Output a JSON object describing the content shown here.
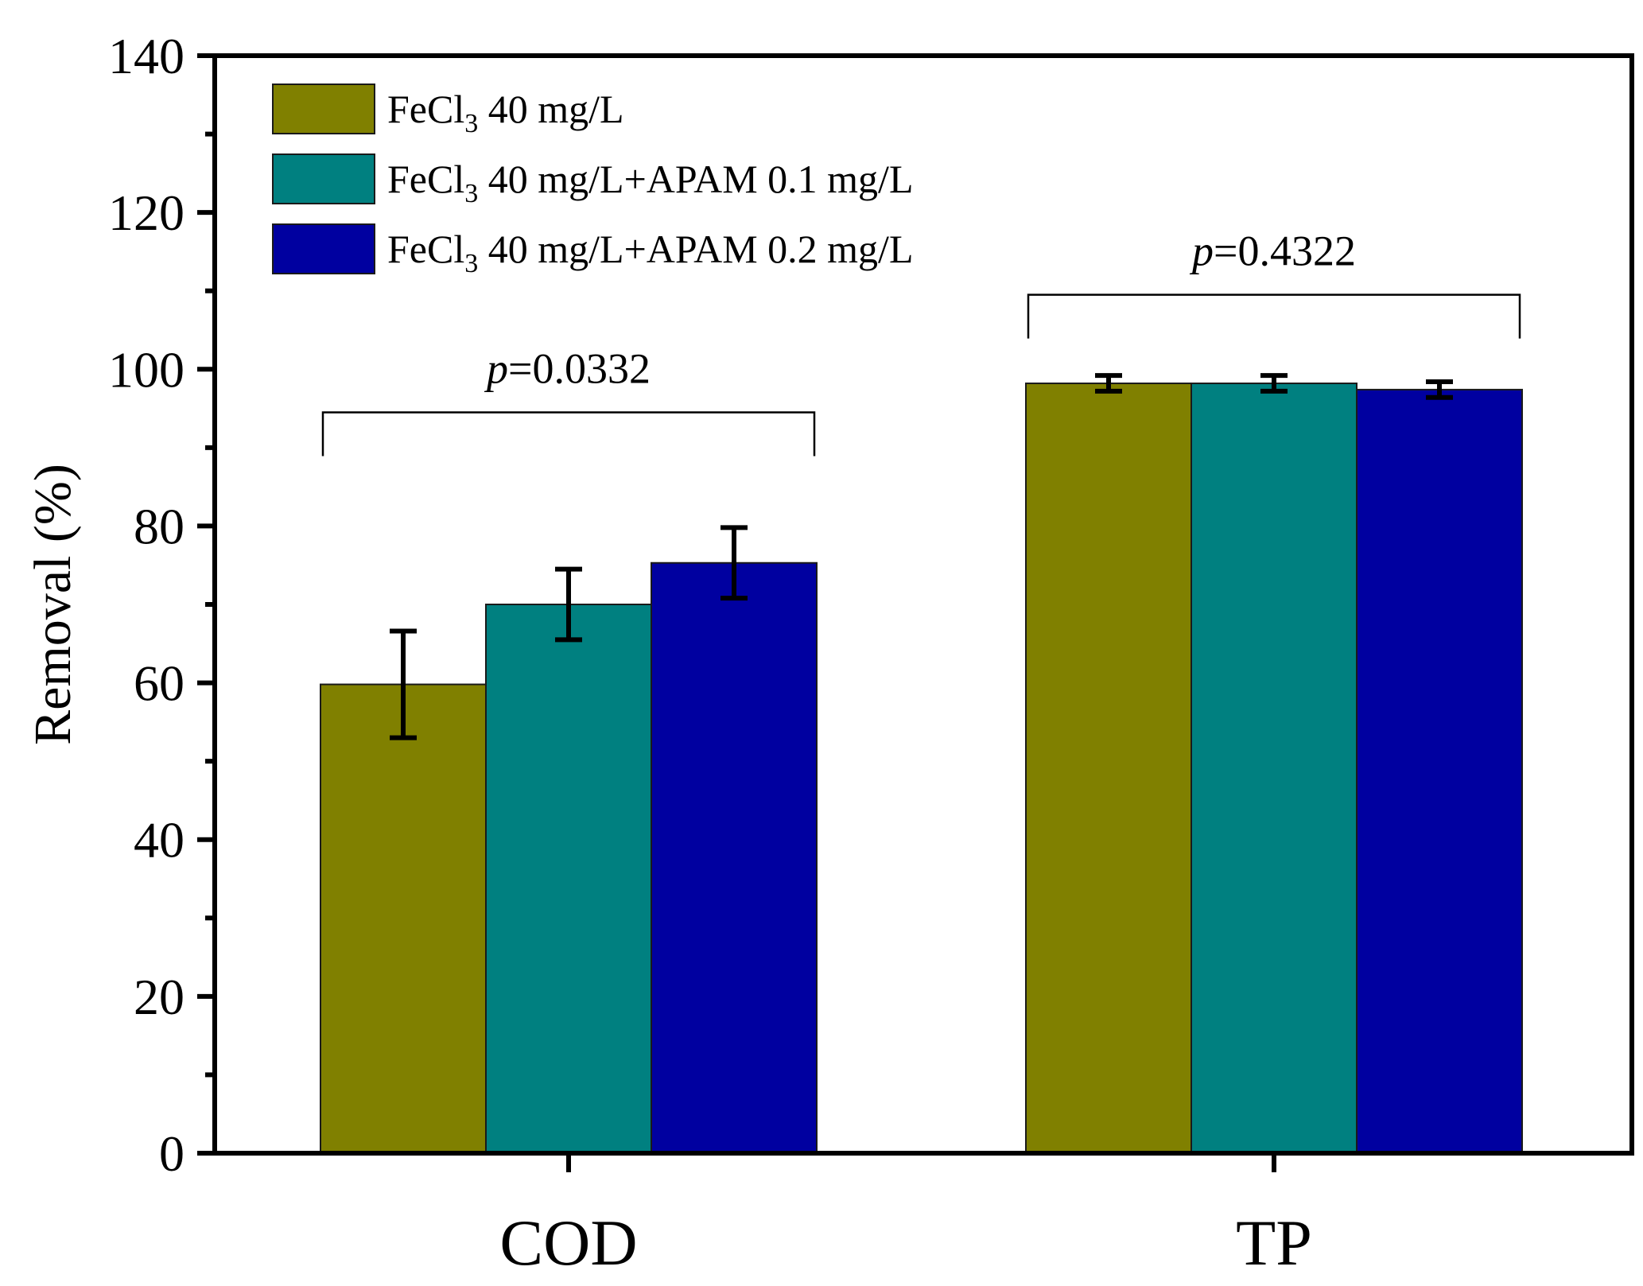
{
  "chart_data": {
    "type": "bar",
    "ylabel": "Removal (%)",
    "xlabel": "",
    "ylim": [
      0,
      140
    ],
    "yticks": [
      "0",
      "20",
      "40",
      "60",
      "80",
      "100",
      "120",
      "140"
    ],
    "categories": [
      "COD",
      "TP"
    ],
    "series": [
      {
        "name_main": "FeCl",
        "name_sub": "3",
        "name_rest": " 40 mg/L",
        "color": "#808000",
        "values": [
          59.8,
          98.2
        ],
        "errors": [
          6.8,
          1.0
        ]
      },
      {
        "name_main": "FeCl",
        "name_sub": "3",
        "name_rest": " 40 mg/L+APAM 0.1 mg/L",
        "color": "#008080",
        "values": [
          70.0,
          98.2
        ],
        "errors": [
          4.5,
          1.0
        ]
      },
      {
        "name_main": "FeCl",
        "name_sub": "3",
        "name_rest": " 40 mg/L+APAM 0.2 mg/L",
        "color": "#0000a0",
        "values": [
          75.3,
          97.4
        ],
        "errors": [
          4.5,
          1.0
        ]
      }
    ],
    "annotations": [
      {
        "category": "COD",
        "p_label": "p",
        "p_value": "=0.0332",
        "bracket_level": 94.5
      },
      {
        "category": "TP",
        "p_label": "p",
        "p_value": "=0.4322",
        "bracket_level": 109.5
      }
    ],
    "legend_position": "top-left"
  }
}
